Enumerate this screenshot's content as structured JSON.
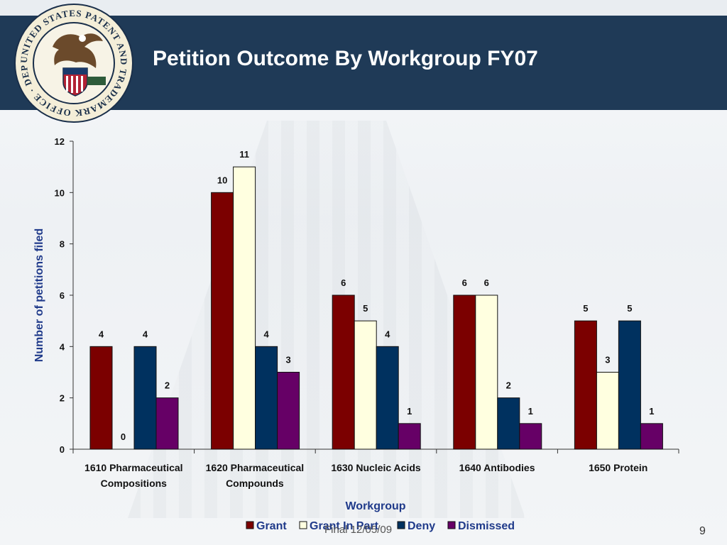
{
  "slide": {
    "title": "Petition Outcome By Workgroup FY07",
    "footer": "Final 12/05/09",
    "page_number": "9",
    "seal_text": "UNITED STATES PATENT AND TRADEMARK OFFICE · DEPARTMENT OF COMMERCE"
  },
  "colors": {
    "header_bg": "#1f3a57",
    "grant": "#7b0000",
    "grant_in_part": "#ffffe0",
    "deny": "#00315f",
    "dismissed": "#660066"
  },
  "chart_data": {
    "type": "bar",
    "title": "",
    "xlabel": "Workgroup",
    "ylabel": "Number of petitions filed",
    "ylim": [
      0,
      12
    ],
    "yticks": [
      0,
      2,
      4,
      6,
      8,
      10,
      12
    ],
    "grid": false,
    "legend_position": "bottom",
    "categories": [
      [
        "1610 Pharmaceutical",
        "Compositions"
      ],
      [
        "1620 Pharmaceutical",
        "Compounds"
      ],
      [
        "1630 Nucleic Acids"
      ],
      [
        "1640 Antibodies"
      ],
      [
        "1650 Protein"
      ]
    ],
    "series": [
      {
        "name": "Grant",
        "values": [
          4,
          10,
          6,
          6,
          5
        ],
        "labels": [
          "4",
          "10",
          "6",
          "6",
          "5"
        ],
        "color": "#7b0000"
      },
      {
        "name": "Grant In Part",
        "values": [
          0,
          11,
          5,
          6,
          3
        ],
        "labels": [
          "0",
          "11",
          "5",
          "6",
          "3"
        ],
        "color": "#ffffe0"
      },
      {
        "name": "Deny",
        "values": [
          4,
          4,
          4,
          2,
          5
        ],
        "labels": [
          "4",
          "4",
          "4",
          "2",
          "5"
        ],
        "color": "#00315f"
      },
      {
        "name": "Dismissed",
        "values": [
          2,
          3,
          1,
          1,
          1
        ],
        "labels": [
          "2",
          "3",
          "1",
          "1",
          "1"
        ],
        "color": "#660066"
      }
    ]
  }
}
